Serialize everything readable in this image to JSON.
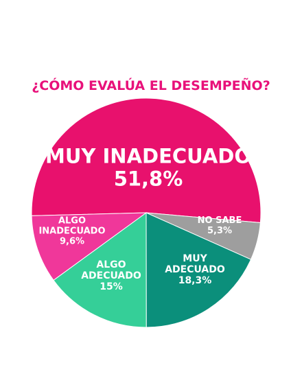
{
  "chart_data": {
    "type": "pie",
    "title": "¿CÓMO EVALÚA EL DESEMPEÑO?",
    "categories": [
      "MUY INADECUADO",
      "NO SABE",
      "MUY ADECUADO",
      "ALGO ADECUADO",
      "ALGO INADECUADO"
    ],
    "values": [
      51.8,
      5.3,
      18.3,
      15,
      9.6
    ],
    "value_labels": [
      "51,8%",
      "5,3%",
      "18,3%",
      "15%",
      "9,6%"
    ],
    "colors": [
      "#e8116d",
      "#9e9e9e",
      "#0b8f7b",
      "#35cf98",
      "#f0379a"
    ]
  }
}
